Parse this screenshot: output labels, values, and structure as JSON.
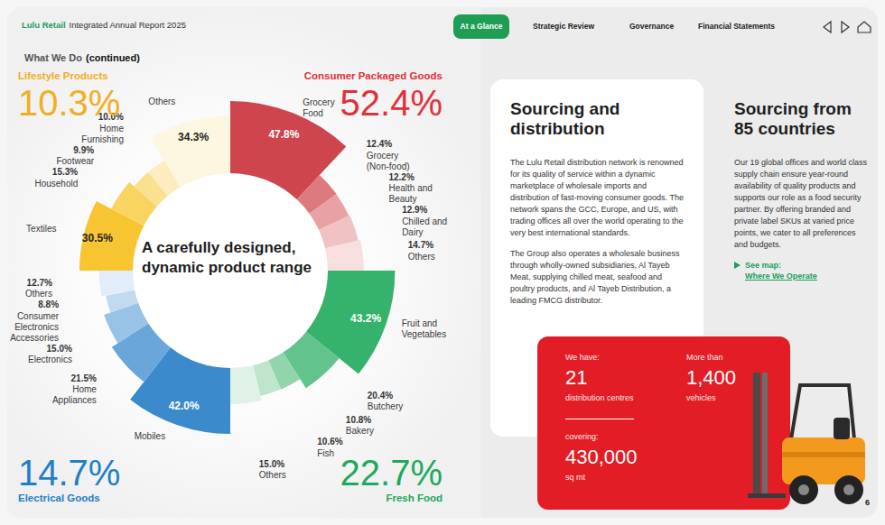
{
  "header": {
    "brand": "Lulu Retail",
    "report": "Integrated Annual Report 2025",
    "nav": [
      "At a Glance",
      "Strategic Review",
      "Governance",
      "Financial Statements"
    ],
    "active_nav": "At a Glance",
    "page_number": "6"
  },
  "section": {
    "title": "What We Do",
    "suffix": "(continued)"
  },
  "chart_data": {
    "type": "pie",
    "title": "A carefully designed, dynamic product range",
    "data_labels": true,
    "groups": [
      {
        "name": "Consumer Packaged Goods",
        "share": "52.4%",
        "color": "#e0313a",
        "categories": [
          "Grocery Food",
          "Grocery (Non-food)",
          "Health and Beauty",
          "Chilled and Dairy",
          "Others"
        ],
        "values": [
          47.8,
          12.4,
          12.2,
          12.9,
          14.7
        ],
        "value_labels": [
          "47.8%",
          "12.4%",
          "12.2%",
          "12.9%",
          "14.7%"
        ],
        "colors": [
          "#cf454d",
          "#dd7a7f",
          "#e8a1a4",
          "#f0c2c4",
          "#f7dfe0"
        ]
      },
      {
        "name": "Fresh Food",
        "share": "22.7%",
        "color": "#20a95d",
        "categories": [
          "Fruit and Vegetables",
          "Butchery",
          "Bakery",
          "Fish",
          "Others"
        ],
        "values": [
          43.2,
          20.4,
          10.8,
          10.6,
          15.0
        ],
        "value_labels": [
          "43.2%",
          "20.4%",
          "10.8%",
          "10.6%",
          "15.0%"
        ],
        "colors": [
          "#35b26b",
          "#62c48c",
          "#92d4ac",
          "#bfe5cd",
          "#e0f2e7"
        ]
      },
      {
        "name": "Electrical Goods",
        "share": "14.7%",
        "color": "#1f7fc6",
        "categories": [
          "Mobiles",
          "Home Appliances",
          "Electronics",
          "Consumer Electronics Accessories",
          "Others"
        ],
        "values": [
          42.0,
          21.5,
          15.0,
          8.8,
          12.7
        ],
        "value_labels": [
          "42.0%",
          "21.5%",
          "15.0%",
          "8.8%",
          "12.7%"
        ],
        "colors": [
          "#3b8bcc",
          "#6aa6da",
          "#98c2e6",
          "#c1daf0",
          "#e1edf8"
        ]
      },
      {
        "name": "Lifestyle Products",
        "share": "10.3%",
        "color": "#f2ae24",
        "categories": [
          "Textiles",
          "Household",
          "Footwear",
          "Home Furnishing",
          "Others"
        ],
        "values": [
          30.5,
          15.3,
          9.9,
          10.0,
          34.3
        ],
        "value_labels": [
          "30.5%",
          "15.3%",
          "9.9%",
          "10.0%",
          "34.3%"
        ],
        "colors": [
          "#f7c531",
          "#f9d460",
          "#fae190",
          "#fcecbf",
          "#fdf6e0"
        ]
      }
    ]
  },
  "panels": [
    {
      "title": "Sourcing and distribution",
      "paragraphs": [
        "The Lulu Retail distribution network is renowned for its quality of service within a dynamic marketplace of wholesale imports and distribution of fast-moving consumer goods. The network spans the GCC, Europe, and US, with trading offices all over the world operating to the very best international standards.",
        "The Group also operates a wholesale business through wholly-owned subsidiaries, Al Tayeb Meat, supplying chilled meat, seafood and poultry products, and Al Tayeb Distribution, a leading FMCG distributor."
      ],
      "stats": [
        {
          "label": "We have:",
          "value": "21",
          "unit": "distribution centres"
        },
        {
          "label": "covering:",
          "value": "430,000",
          "unit": "sq mt"
        },
        {
          "label": "More than",
          "value": "1,400",
          "unit": "vehicles"
        }
      ]
    },
    {
      "title": "Sourcing from 85 countries",
      "paragraphs": [
        "Our 19 global offices and world class supply chain ensure year-round availability of quality products and supports our role as a food security partner. By offering branded and private label SKUs at varied price points, we cater to all preferences and budgets."
      ],
      "link": {
        "prefix": "See map:",
        "text": "Where We Operate"
      }
    }
  ]
}
